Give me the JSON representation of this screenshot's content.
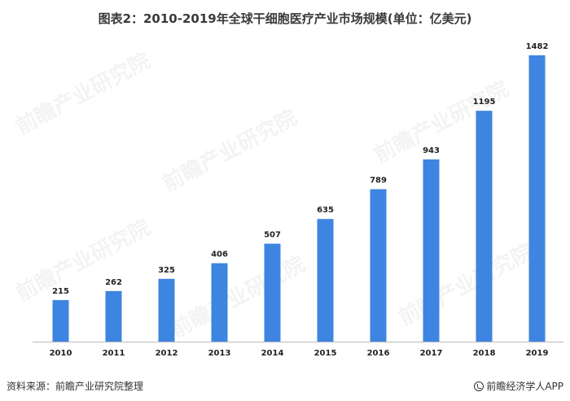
{
  "header": {
    "title": "图表2：2010-2019年全球干细胞医疗产业市场规模(单位：亿美元)"
  },
  "footer": {
    "source": "资料来源：前瞻产业研究院整理",
    "brand": "前瞻经济学人APP",
    "brand_icon": "qianzhan-logo-icon"
  },
  "watermark_text": "前瞻产业研究院",
  "colors": {
    "bar": "#3d85e0",
    "axis": "#bbbbbb",
    "label": "#222222"
  },
  "chart_data": {
    "type": "bar",
    "title": "图表2：2010-2019年全球干细胞医疗产业市场规模(单位：亿美元)",
    "categories": [
      "2010",
      "2011",
      "2012",
      "2013",
      "2014",
      "2015",
      "2016",
      "2017",
      "2018",
      "2019"
    ],
    "values": [
      215,
      262,
      325,
      406,
      507,
      635,
      789,
      943,
      1195,
      1482
    ],
    "xlabel": "",
    "ylabel": "",
    "ylim": [
      0,
      1600
    ],
    "grid": false,
    "legend": "none",
    "data_labels": true
  }
}
